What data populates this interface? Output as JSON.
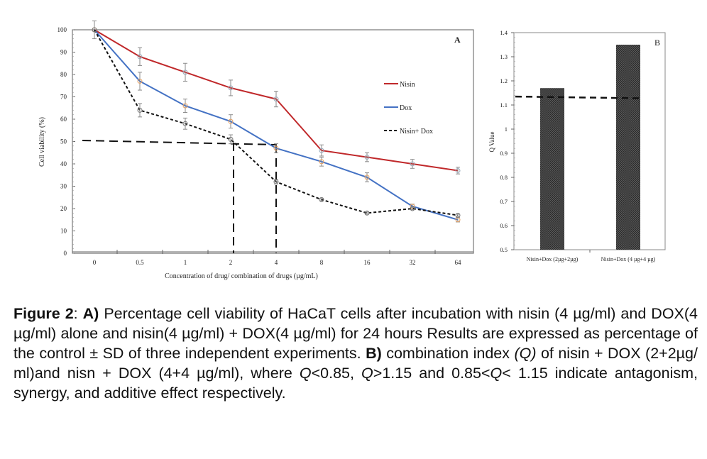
{
  "chart_data": [
    {
      "type": "line",
      "panel_label": "A",
      "title": "",
      "xlabel": "Concentration of  drug/ combination of drugs (µg/mL)",
      "ylabel": "Cell  viability  (%)",
      "categories": [
        "0",
        "0.5",
        "1",
        "2",
        "4",
        "8",
        "16",
        "32",
        "64"
      ],
      "ylim": [
        0,
        100
      ],
      "yticks": [
        0,
        10,
        20,
        30,
        40,
        50,
        60,
        70,
        80,
        90,
        100
      ],
      "grid": false,
      "legend_position": "right",
      "series": [
        {
          "name": "Nisin",
          "color": "#c0282a",
          "dash": "solid",
          "values": [
            100,
            88,
            81,
            74,
            69,
            46,
            43,
            40,
            37
          ],
          "errors": [
            0,
            4,
            4,
            3.5,
            3.5,
            2.5,
            2,
            2,
            1.5
          ]
        },
        {
          "name": "Dox",
          "color": "#4472c4",
          "dash": "solid",
          "values": [
            100,
            77,
            66,
            59,
            47,
            41,
            34,
            21,
            15
          ],
          "errors": [
            4,
            4,
            3,
            3,
            2,
            2,
            2,
            1,
            1
          ]
        },
        {
          "name": "Nisin+ Dox",
          "color": "#111111",
          "dash": "dotted",
          "values": [
            100,
            64,
            58,
            51,
            32,
            24,
            18,
            20,
            17
          ],
          "errors": [
            0,
            3,
            2.5,
            2,
            1,
            0.5,
            0.5,
            0.5,
            0.5
          ]
        }
      ],
      "annotations": [
        {
          "type": "dashed-line",
          "description": "IC50 reference at ~50% viability to x between 2 and 4"
        },
        {
          "type": "dashed-line",
          "description": "vertical drop at x≈2.1 and x≈4.1"
        }
      ]
    },
    {
      "type": "bar",
      "panel_label": "B",
      "title": "",
      "xlabel": "",
      "ylabel": "Q  Value",
      "categories": [
        "Nisin+Dox (2µg+2µg)",
        "Nisin+Dox (4 µg+4 µg)"
      ],
      "values": [
        1.17,
        1.35
      ],
      "ylim": [
        0.5,
        1.4
      ],
      "yticks": [
        0.5,
        0.6,
        0.7,
        0.8,
        0.9,
        1,
        1.1,
        1.2,
        1.3,
        1.4
      ],
      "ytick_labels": [
        "0.5",
        "0.6",
        "0.7",
        "0.8",
        "0.9",
        "1",
        "1.1",
        "1.2",
        "1.3",
        "1.4"
      ],
      "reference_line": {
        "value": 1.135,
        "style": "dashed"
      },
      "grid": false
    }
  ],
  "caption": {
    "fig_label": "Figure 2",
    "a_label": "A)",
    "part1": " Percentage cell viability of HaCaT cells after incubation with nisin (4 µg/ml) and DOX(4 µg/ml) alone  and nisin(4 µg/ml) + DOX(4 µg/ml) for 24 hours  Results are expressed as percentage of the control ± SD of three independent experiments. ",
    "b_label": "B)",
    "part2": " combination index ",
    "q_paren": "(Q)",
    "part3": " of nisin + DOX (2+2µg/ ml)and nisn + DOX (4+4 µg/ml), where ",
    "q1": "Q",
    "part4": "<0.85, ",
    "q2": "Q",
    "part5": ">1.15 and 0.85<",
    "q3": "Q",
    "part6": "< 1.15 indicate antagonism, synergy, and additive effect respectively."
  }
}
